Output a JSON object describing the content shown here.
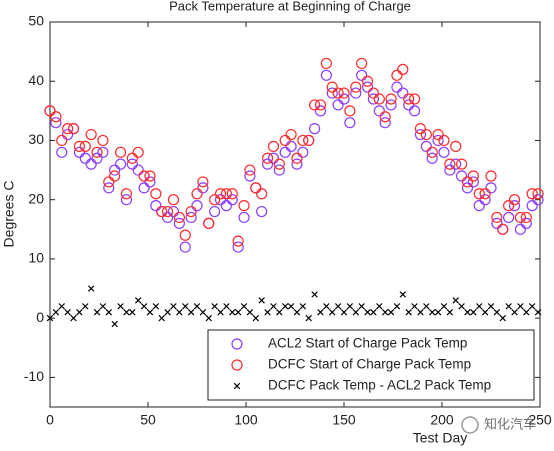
{
  "chart_data": {
    "type": "scatter",
    "title": "Pack Temperature at Beginning of Charge",
    "xlabel": "Test Day",
    "ylabel": "Degrees C",
    "xlim": [
      0,
      250
    ],
    "xticks": [
      0,
      50,
      100,
      150,
      200,
      250
    ],
    "ylim": [
      -15,
      50
    ],
    "yticks": [
      -10,
      0,
      10,
      20,
      30,
      40,
      50
    ],
    "grid": false,
    "legend": "lower right",
    "x": [
      0,
      3,
      6,
      9,
      12,
      15,
      18,
      21,
      24,
      27,
      30,
      33,
      36,
      39,
      42,
      45,
      48,
      51,
      54,
      57,
      60,
      63,
      66,
      69,
      72,
      75,
      78,
      81,
      84,
      87,
      90,
      93,
      96,
      99,
      102,
      105,
      108,
      111,
      114,
      117,
      120,
      123,
      126,
      129,
      132,
      135,
      138,
      141,
      144,
      147,
      150,
      153,
      156,
      159,
      162,
      165,
      168,
      171,
      174,
      177,
      180,
      183,
      186,
      189,
      192,
      195,
      198,
      201,
      204,
      207,
      210,
      213,
      216,
      219,
      222,
      225,
      228,
      231,
      234,
      237,
      240,
      243,
      246,
      249
    ],
    "series": [
      {
        "name": "ACL2 Start of Charge Pack Temp",
        "color": "#8a3cff",
        "marker": "o",
        "values": [
          35,
          33,
          28,
          31,
          32,
          28,
          27,
          26,
          27,
          28,
          22,
          25,
          26,
          20,
          26,
          25,
          22,
          23,
          19,
          18,
          17,
          18,
          16,
          12,
          17,
          19,
          22,
          16,
          18,
          20,
          19,
          20,
          12,
          17,
          24,
          22,
          18,
          26,
          27,
          25,
          28,
          29,
          26,
          28,
          30,
          32,
          35,
          41,
          38,
          36,
          37,
          33,
          38,
          41,
          39,
          37,
          35,
          33,
          36,
          39,
          38,
          36,
          35,
          31,
          29,
          27,
          30,
          28,
          25,
          26,
          24,
          22,
          23,
          19,
          20,
          22,
          16,
          15,
          17,
          19,
          15,
          16,
          19,
          20
        ]
      },
      {
        "name": "DCFC Start of Charge Pack Temp",
        "color": "#ff2a2a",
        "marker": "o",
        "values": [
          35,
          34,
          30,
          32,
          32,
          29,
          29,
          31,
          28,
          30,
          23,
          24,
          28,
          21,
          27,
          28,
          24,
          24,
          21,
          18,
          18,
          20,
          17,
          14,
          18,
          21,
          23,
          16,
          20,
          21,
          21,
          21,
          13,
          19,
          25,
          22,
          21,
          27,
          29,
          26,
          30,
          31,
          27,
          30,
          30,
          36,
          36,
          43,
          39,
          38,
          38,
          35,
          39,
          43,
          40,
          38,
          37,
          34,
          37,
          41,
          42,
          37,
          37,
          32,
          31,
          28,
          31,
          30,
          26,
          29,
          26,
          23,
          24,
          21,
          21,
          24,
          17,
          15,
          19,
          20,
          17,
          17,
          21,
          21
        ]
      },
      {
        "name": "DCFC Pack Temp - ACL2 Pack Temp",
        "color": "#000000",
        "marker": "x",
        "values": [
          0,
          1,
          2,
          1,
          0,
          1,
          2,
          5,
          1,
          2,
          1,
          -1,
          2,
          1,
          1,
          3,
          2,
          1,
          2,
          0,
          1,
          2,
          1,
          2,
          1,
          2,
          1,
          0,
          2,
          1,
          2,
          1,
          1,
          2,
          1,
          0,
          3,
          1,
          2,
          1,
          2,
          2,
          1,
          2,
          0,
          4,
          1,
          2,
          1,
          2,
          1,
          2,
          1,
          2,
          1,
          1,
          2,
          1,
          1,
          2,
          4,
          1,
          2,
          1,
          2,
          1,
          1,
          2,
          1,
          3,
          2,
          1,
          1,
          2,
          1,
          2,
          1,
          0,
          2,
          1,
          2,
          1,
          2,
          1
        ]
      }
    ],
    "watermark": "知化汽车"
  }
}
